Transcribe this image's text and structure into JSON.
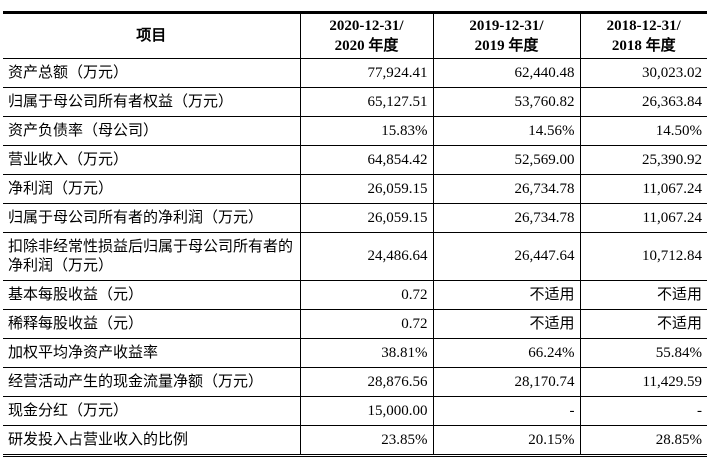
{
  "table": {
    "headers": [
      "项目",
      "2020-12-31/\n2020 年度",
      "2019-12-31/\n2019 年度",
      "2018-12-31/\n2018 年度"
    ],
    "header_lines": [
      [
        "项目"
      ],
      [
        "2020-12-31/",
        "2020 年度"
      ],
      [
        "2019-12-31/",
        "2019 年度"
      ],
      [
        "2018-12-31/",
        "2018 年度"
      ]
    ],
    "rows": [
      [
        "资产总额（万元）",
        "77,924.41",
        "62,440.48",
        "30,023.02"
      ],
      [
        "归属于母公司所有者权益（万元）",
        "65,127.51",
        "53,760.82",
        "26,363.84"
      ],
      [
        "资产负债率（母公司）",
        "15.83%",
        "14.56%",
        "14.50%"
      ],
      [
        "营业收入（万元）",
        "64,854.42",
        "52,569.00",
        "25,390.92"
      ],
      [
        "净利润（万元）",
        "26,059.15",
        "26,734.78",
        "11,067.24"
      ],
      [
        "归属于母公司所有者的净利润（万元）",
        "26,059.15",
        "26,734.78",
        "11,067.24"
      ],
      [
        "扣除非经常性损益后归属于母公司所有者的净利润（万元）",
        "24,486.64",
        "26,447.64",
        "10,712.84"
      ],
      [
        "基本每股收益（元）",
        "0.72",
        "不适用",
        "不适用"
      ],
      [
        "稀释每股收益（元）",
        "0.72",
        "不适用",
        "不适用"
      ],
      [
        "加权平均净资产收益率",
        "38.81%",
        "66.24%",
        "55.84%"
      ],
      [
        "经营活动产生的现金流量净额（万元）",
        "28,876.56",
        "28,170.74",
        "11,429.59"
      ],
      [
        "现金分红（万元）",
        "15,000.00",
        "-",
        "-"
      ],
      [
        "研发投入占营业收入的比例",
        "23.85%",
        "20.15%",
        "28.85%"
      ]
    ]
  }
}
